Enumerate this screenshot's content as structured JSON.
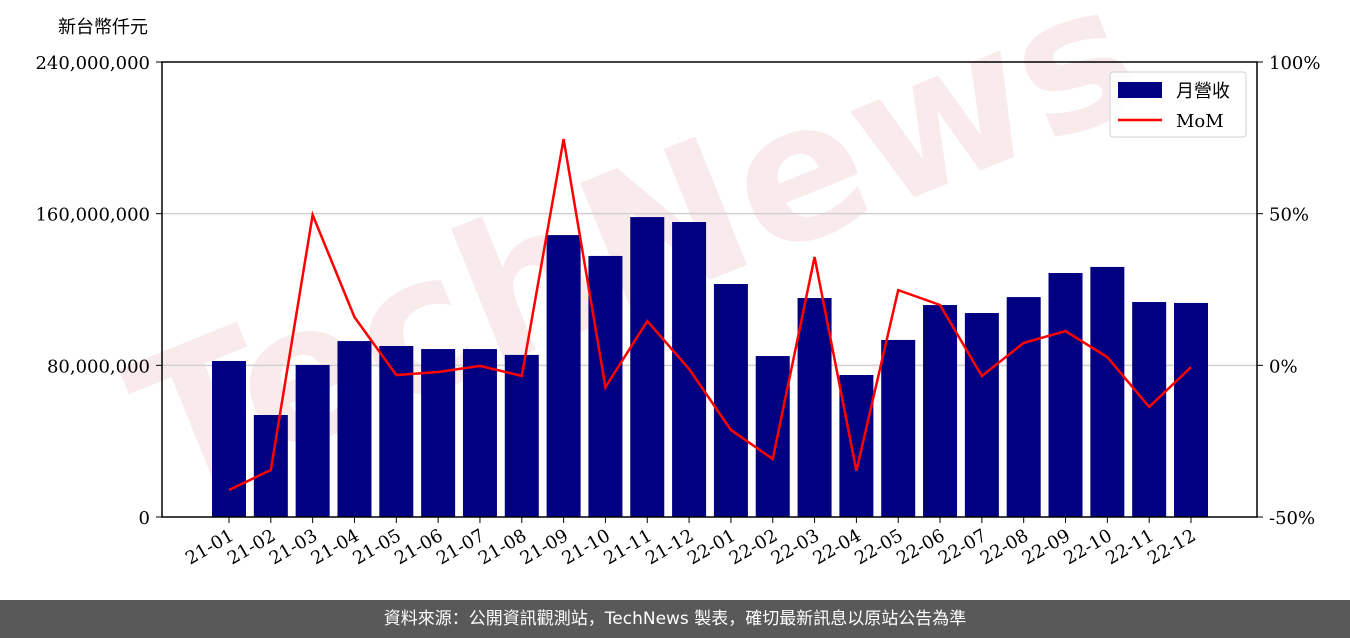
{
  "chart_data": {
    "type": "bar",
    "y_axis_label": "新台幣仟元",
    "watermark": "TechNews",
    "categories": [
      "21-01",
      "21-02",
      "21-03",
      "21-04",
      "21-05",
      "21-06",
      "21-07",
      "21-08",
      "21-09",
      "21-10",
      "21-11",
      "21-12",
      "22-01",
      "22-02",
      "22-03",
      "22-04",
      "22-05",
      "22-06",
      "22-07",
      "22-08",
      "22-09",
      "22-10",
      "22-11",
      "22-12"
    ],
    "series": [
      {
        "name": "月營收",
        "type": "bar",
        "color": "#000080",
        "values": [
          82300000,
          53800000,
          80200000,
          92800000,
          90200000,
          88600000,
          88600000,
          85500000,
          148700000,
          137700000,
          158200000,
          155600000,
          122900000,
          84900000,
          115500000,
          74900000,
          93400000,
          111800000,
          107600000,
          116000000,
          128700000,
          131900000,
          113400000,
          112900000
        ]
      },
      {
        "name": "MoM",
        "type": "line",
        "axis": "y2",
        "color": "#ff0000",
        "values": [
          -41.1,
          -34.5,
          49.6,
          15.9,
          -3.2,
          -2.2,
          -0.2,
          -3.5,
          74.6,
          -7.2,
          14.6,
          -1.2,
          -21.3,
          -30.9,
          35.7,
          -34.8,
          24.8,
          19.9,
          -3.5,
          7.4,
          11.3,
          2.7,
          -13.7,
          -0.6
        ]
      }
    ],
    "ylim": [
      0,
      240000000
    ],
    "yticks": [
      0,
      {
        "value": 80000000,
        "label": "80,000,000"
      },
      {
        "value": 160000000,
        "label": "160,000,000"
      },
      {
        "value": 240000000,
        "label": "240,000,000"
      }
    ],
    "y2lim": [
      -50,
      100
    ],
    "y2ticks": [
      {
        "value": -50,
        "label": "-50%"
      },
      {
        "value": 0,
        "label": "0%"
      },
      {
        "value": 50,
        "label": "50%"
      },
      {
        "value": 100,
        "label": "100%"
      }
    ],
    "grid": true,
    "legend": "upper right"
  },
  "footer": {
    "text": "資料來源：公開資訊觀測站，TechNews 製表，確切最新訊息以原站公告為準"
  }
}
